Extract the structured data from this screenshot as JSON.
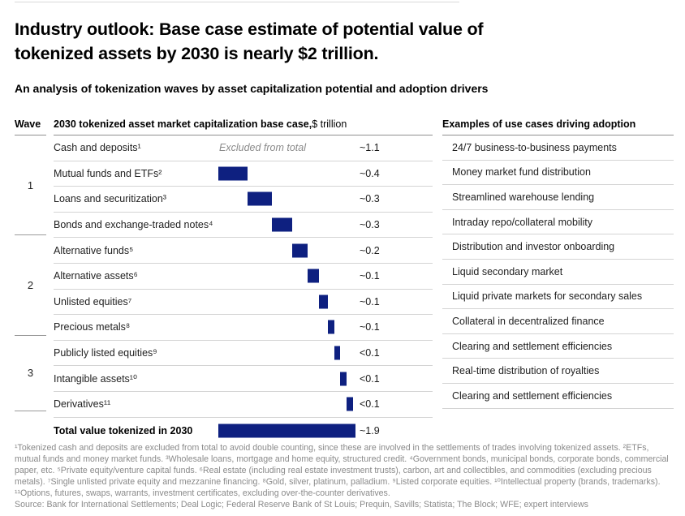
{
  "page": {
    "title_line1": "Industry outlook: Base case estimate of potential value of",
    "title_line2": "tokenized assets by 2030 is nearly $2 trillion.",
    "subtitle": "An analysis of tokenization waves by asset capitalization potential and adoption drivers",
    "footnote": "¹Tokenized cash and deposits are excluded from total to avoid double counting, since these are involved in the settlements of trades involving tokenized assets. ²ETFs, mutual funds and money market funds. ³Wholesale loans, mortgage and home equity, structured credit. ⁴Government bonds, municipal bonds, corporate bonds, commercial paper, etc. ⁵Private equity/venture capital funds. ⁶Real estate (including real estate investment trusts), carbon, art and collectibles, and commodities (excluding precious metals). ⁷Single unlisted private equity and mezzanine financing. ⁸Gold, silver, platinum, palladium. ⁹Listed corporate equities. ¹⁰Intellectual property (brands, trademarks). ¹¹Options, futures, swaps, warrants, investment certificates, excluding over-the-counter derivatives.",
    "source": "Source: Bank for International Settlements; Deal Logic; Federal Reserve Bank of St Louis; Prequin, Savills; Statista; The Block; WFE; expert interviews"
  },
  "table": {
    "wave_header": "Wave",
    "main_header_bold": "2030 tokenized asset market capitalization base case,",
    "main_header_unit": " $ trillion",
    "usecase_header": "Examples of use cases driving adoption"
  },
  "colors": {
    "bar_navy": "#0e2080",
    "gray_text": "#8a8a8a",
    "row_line": "#d4d4d4",
    "header_line": "#8f8f8f"
  },
  "chart_data": {
    "type": "bar",
    "subtype": "waterfall",
    "title": "2030 tokenized asset market capitalization base case, $ trillion",
    "unit": "$ trillion",
    "legend": "none",
    "xlim": [
      0,
      1.9
    ],
    "waves": [
      {
        "label": "1",
        "row_count": 4
      },
      {
        "label": "2",
        "row_count": 4
      },
      {
        "label": "3",
        "row_count": 3
      }
    ],
    "rows": [
      {
        "wave": 1,
        "label": "Cash and deposits¹",
        "value_label": "~1.1",
        "value": 1.1,
        "excluded": true,
        "excluded_note": "Excluded from total",
        "use_case": "24/7 business-to-business payments"
      },
      {
        "wave": 1,
        "label": "Mutual funds and ETFs²",
        "value_label": "~0.4",
        "value": 0.4,
        "excluded": false,
        "use_case": "Money market fund distribution"
      },
      {
        "wave": 1,
        "label": "Loans and securitization³",
        "value_label": "~0.3",
        "value": 0.34,
        "excluded": false,
        "use_case": "Streamlined warehouse lending"
      },
      {
        "wave": 1,
        "label": "Bonds and exchange-traded notes⁴",
        "value_label": "~0.3",
        "value": 0.28,
        "excluded": false,
        "use_case": "Intraday repo/collateral mobility"
      },
      {
        "wave": 2,
        "label": "Alternative funds⁵",
        "value_label": "~0.2",
        "value": 0.22,
        "excluded": false,
        "use_case": "Distribution and investor onboarding"
      },
      {
        "wave": 2,
        "label": "Alternative assets⁶",
        "value_label": "~0.1",
        "value": 0.15,
        "excluded": false,
        "use_case": "Liquid secondary market"
      },
      {
        "wave": 2,
        "label": "Unlisted equities⁷",
        "value_label": "~0.1",
        "value": 0.13,
        "excluded": false,
        "use_case": "Liquid private markets for secondary sales"
      },
      {
        "wave": 2,
        "label": "Precious metals⁸",
        "value_label": "~0.1",
        "value": 0.09,
        "excluded": false,
        "use_case": "Collateral in decentralized finance"
      },
      {
        "wave": 3,
        "label": "Publicly listed equities⁹",
        "value_label": "<0.1",
        "value": 0.08,
        "excluded": false,
        "use_case": "Clearing and settlement efficiencies"
      },
      {
        "wave": 3,
        "label": "Intangible assets¹⁰",
        "value_label": "<0.1",
        "value": 0.09,
        "excluded": false,
        "use_case": "Real-time distribution of royalties"
      },
      {
        "wave": 3,
        "label": "Derivatives¹¹",
        "value_label": "<0.1",
        "value": 0.08,
        "excluded": false,
        "use_case": "Clearing and settlement efficiencies"
      }
    ],
    "total": {
      "label": "Total value tokenized in 2030",
      "value_label": "~1.9",
      "value": 1.9
    }
  }
}
